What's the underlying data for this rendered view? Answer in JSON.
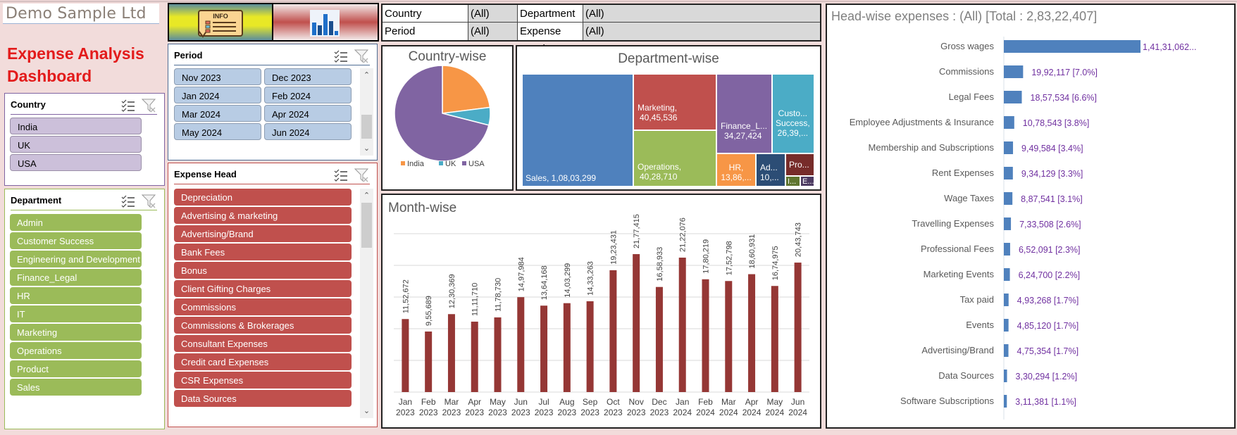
{
  "company": "Demo Sample Ltd",
  "dashboard_title_line1": "Expense Analysis",
  "dashboard_title_line2": "Dashboard",
  "buttons": {
    "info": "info-button",
    "charts": "charts-button"
  },
  "slicers": {
    "country": {
      "title": "Country",
      "items": [
        "India",
        "UK",
        "USA"
      ]
    },
    "department": {
      "title": "Department",
      "items": [
        "Admin",
        "Customer Success",
        "Engineering and Development",
        "Finance_Legal",
        "HR",
        "IT",
        "Marketing",
        "Operations",
        "Product",
        "Sales"
      ]
    },
    "period": {
      "title": "Period",
      "items": [
        "Nov 2023",
        "Dec 2023",
        "Jan 2024",
        "Feb 2024",
        "Mar 2024",
        "Apr 2024",
        "May 2024",
        "Jun 2024"
      ]
    },
    "expense_head": {
      "title": "Expense Head",
      "items": [
        "Depreciation",
        "Advertising & marketing",
        "Advertising/Brand",
        "Bank Fees",
        "Bonus",
        "Client Gifting Charges",
        "Commissions",
        "Commissions & Brokerages",
        "Consultant Expenses",
        "Credit card Expenses",
        "CSR Expenses",
        "Data Sources"
      ]
    }
  },
  "filters": {
    "country_label": "Country",
    "country_value": "(All)",
    "department_label": "Department",
    "department_value": "(All)",
    "period_label": "Period",
    "period_value": "(All)",
    "expense_head_label": "Expense Head",
    "expense_head_value": "(All)"
  },
  "colors": {
    "india": "#f79646",
    "uk": "#4bacc6",
    "usa": "#8064a2",
    "month_bar": "#953735",
    "head_bar": "#4f81bd",
    "head_label": "#7030a0"
  },
  "chart_data": [
    {
      "type": "pie",
      "title": "Country-wise",
      "categories": [
        "India",
        "UK",
        "USA"
      ],
      "values": [
        23,
        6,
        71
      ],
      "legend": "bottom"
    },
    {
      "type": "treemap",
      "title": "Department-wise",
      "items": [
        {
          "label": "Sales",
          "value_text": "1,08,03,299",
          "value": 10803299,
          "color": "#4f81bd"
        },
        {
          "label": "Marketing,",
          "value_text": "40,45,536",
          "value": 4045536,
          "color": "#c0504d"
        },
        {
          "label": "Operations,",
          "value_text": "40,28,710",
          "value": 4028710,
          "color": "#9bbb59"
        },
        {
          "label": "Finance_L...",
          "value_text": "34,27,424",
          "value": 3427424,
          "color": "#8064a2"
        },
        {
          "label": "Custo... Success,",
          "value_text": "26,39,...",
          "value": 2639000,
          "color": "#4bacc6"
        },
        {
          "label": "HR,",
          "value_text": "13,86,...",
          "value": 1386000,
          "color": "#f79646"
        },
        {
          "label": "Ad...",
          "value_text": "10,...",
          "value": 1000000,
          "color": "#2c4d75"
        },
        {
          "label": "Pro...",
          "value_text": "",
          "value": 600000,
          "color": "#772c2a"
        },
        {
          "label": "I...",
          "value_text": "",
          "value": 300000,
          "color": "#5f7530"
        },
        {
          "label": "E...",
          "value_text": "",
          "value": 250000,
          "color": "#4d3b62"
        }
      ]
    },
    {
      "type": "bar",
      "title": "Month-wise",
      "categories": [
        "Jan 2023",
        "Feb 2023",
        "Mar 2023",
        "Apr 2023",
        "May 2023",
        "Jun 2023",
        "Jul 2023",
        "Aug 2023",
        "Sep 2023",
        "Oct 2023",
        "Nov 2023",
        "Dec 2023",
        "Jan 2024",
        "Feb 2024",
        "Mar 2024",
        "Apr 2024",
        "May 2024",
        "Jun 2024"
      ],
      "values": [
        1152672,
        955689,
        1230369,
        1111710,
        1178730,
        1497984,
        1364168,
        1403299,
        1433263,
        1923431,
        2177415,
        1658933,
        2122076,
        1780219,
        1752798,
        1860931,
        1674975,
        2043743
      ],
      "value_labels": [
        "11,52,672",
        "9,55,689",
        "12,30,369",
        "11,11,710",
        "11,78,730",
        "14,97,984",
        "13,64,168",
        "14,03,299",
        "14,33,263",
        "19,23,431",
        "21,77,415",
        "16,58,933",
        "21,22,076",
        "17,80,219",
        "17,52,798",
        "18,60,931",
        "16,74,975",
        "20,43,743"
      ],
      "ylim": [
        0,
        2500000
      ],
      "gridlines": [
        0,
        500000,
        1000000,
        1500000,
        2000000,
        2500000
      ],
      "grid": true
    },
    {
      "type": "bar",
      "orientation": "horizontal",
      "title": "Head-wise expenses : (All) [Total : 2,83,22,407]",
      "categories": [
        "Gross wages",
        "Commissions",
        "Legal Fees",
        "Employee Adjustments & Insurance",
        "Membership and Subscriptions",
        "Rent Expenses",
        "Wage Taxes",
        "Travelling Expenses",
        "Professional Fees",
        "Marketing Events",
        "Tax paid",
        "Events",
        "Advertising/Brand",
        "Data Sources",
        "Software Subscriptions"
      ],
      "values": [
        14131062,
        1992117,
        1857534,
        1078543,
        949584,
        934129,
        887541,
        733508,
        652091,
        624700,
        493268,
        485120,
        475354,
        330294,
        311381
      ],
      "value_labels": [
        "1,41,31,062...",
        "19,92,117 [7.0%]",
        "18,57,534 [6.6%]",
        "10,78,543 [3.8%]",
        "9,49,584 [3.4%]",
        "9,34,129 [3.3%]",
        "8,87,541 [3.1%]",
        "7,33,508 [2.6%]",
        "6,52,091 [2.3%]",
        "6,24,700 [2.2%]",
        "4,93,268 [1.7%]",
        "4,85,120 [1.7%]",
        "4,75,354 [1.7%]",
        "3,30,294 [1.2%]",
        "3,11,381 [1.1%]"
      ]
    }
  ]
}
